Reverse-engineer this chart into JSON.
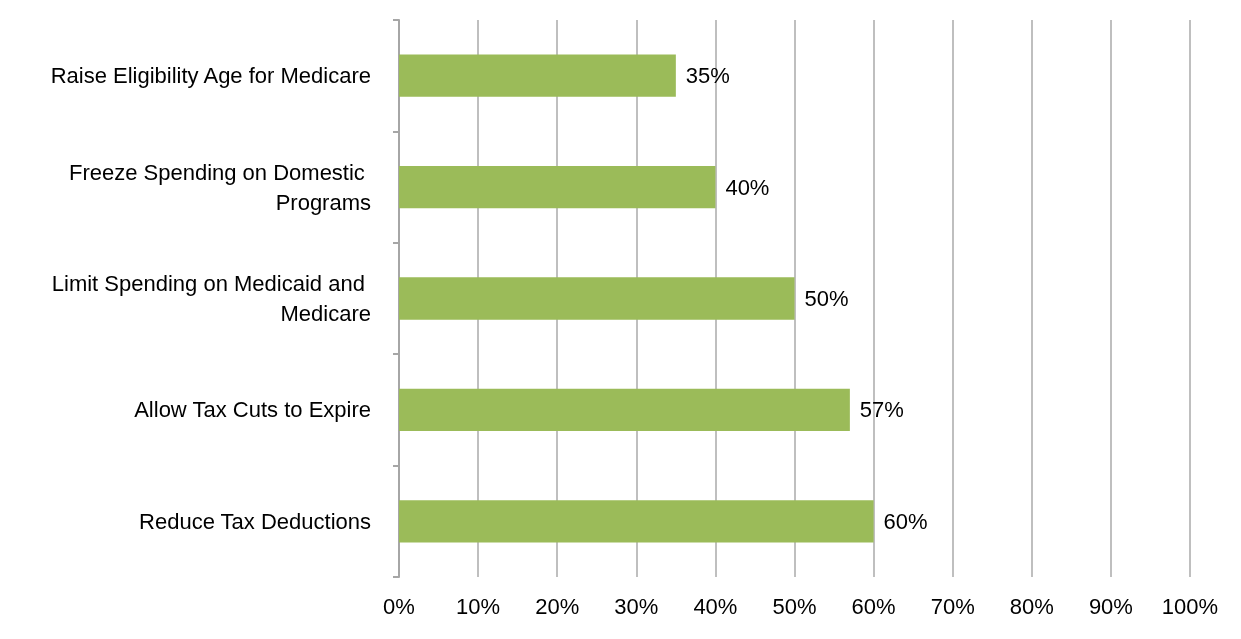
{
  "chart_data": {
    "type": "bar",
    "orientation": "horizontal",
    "categories": [
      "Raise Eligibility Age for Medicare",
      "Freeze Spending on Domestic Programs",
      "Limit Spending on Medicaid and Medicare",
      "Allow Tax Cuts to Expire",
      "Reduce Tax Deductions"
    ],
    "values": [
      35,
      40,
      50,
      57,
      60
    ],
    "value_labels": [
      "35%",
      "40%",
      "50%",
      "57%",
      "60%"
    ],
    "color": "#9bbb59",
    "xlim": [
      0,
      100
    ],
    "xticks": [
      {
        "value": 0,
        "label": "0%"
      },
      {
        "value": 10,
        "label": "10%"
      },
      {
        "value": 20,
        "label": "20%"
      },
      {
        "value": 30,
        "label": "30%"
      },
      {
        "value": 40,
        "label": "40%"
      },
      {
        "value": 50,
        "label": "50%"
      },
      {
        "value": 60,
        "label": "60%"
      },
      {
        "value": 70,
        "label": "70%"
      },
      {
        "value": 80,
        "label": "80%"
      },
      {
        "value": 90,
        "label": "90%"
      },
      {
        "value": 100,
        "label": "100%"
      }
    ],
    "grid": "x"
  }
}
